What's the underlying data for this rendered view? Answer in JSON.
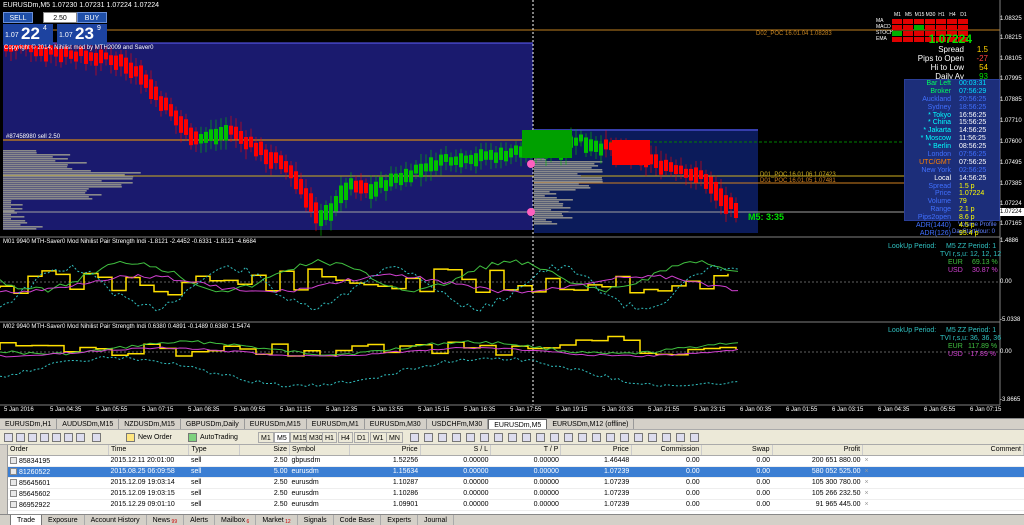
{
  "chart": {
    "title": "EURUSDm,M5  1.07230 1.07231 1.07224 1.07224",
    "one_click": {
      "sell_label": "SELL",
      "buy_label": "BUY",
      "lot": "2.50",
      "sell_prefix": "1.07",
      "sell_big": "22",
      "sell_sup": "4",
      "buy_prefix": "1.07",
      "buy_big": "23",
      "buy_sup": "9"
    },
    "copyright": "Copyright © 2014, Nihilist mod by MTH2009 and Saver0",
    "sell_label_left": "#87458980 sell 2.50",
    "poc_label": "D02_POC 16.01.04 1.08283",
    "poc_label2": "D01_POC 16.01.06 1.07423",
    "poc_label3": "D01_POC 16.01.05 1.07481",
    "timer": "M5: 3:35",
    "volume_profile": "Volume Profile",
    "day_start": "DayStartHour: 0",
    "price_axis": [
      "1.08325",
      "1.08215",
      "1.08105",
      "1.07995",
      "1.07885",
      "1.07710",
      "1.07600",
      "1.07495",
      "1.07385",
      "1.07224",
      "1.07165"
    ],
    "current_price_tag": "1.07224",
    "indicator1_title": "M01 9940 MTH-Saver0 Mod Nihilist Pair Strength Indi -1.8121 -2.4452 -0.6331 -1.8121 -4.6684",
    "indicator1_axis": [
      "1.4886",
      "0.00",
      "-5.0338"
    ],
    "indicator1_info": {
      "lookup": "LookUp Period:",
      "zz": "M5 ZZ Period: 1",
      "tvi": "TVI r,s,u: 12, 12, 12",
      "eur_label": "EUR",
      "eur_val": "69.13 %",
      "usd_label": "USD",
      "usd_val": "30.87 %"
    },
    "indicator2_title": "M02 9940 MTH-Saver0 Mod Nihilist Pair Strength Indi 0.6380 0.4891 -0.1489 0.6380 -1.5474",
    "indicator2_axis": [
      "0.00",
      "-3.8665"
    ],
    "indicator2_info": {
      "lookup": "LookUp Period:",
      "zz": "M5 ZZ Period: 1",
      "tvi": "TVI r,s,u: 36, 36, 36",
      "eur_label": "EUR",
      "eur_val": "117.89 %",
      "usd_label": "USD",
      "usd_val": "-17.89 %"
    },
    "time_axis": [
      "5 Jan 2016",
      "5 Jan 04:35",
      "5 Jan 05:55",
      "5 Jan 07:15",
      "5 Jan 08:35",
      "5 Jan 09:55",
      "5 Jan 11:15",
      "5 Jan 12:35",
      "5 Jan 13:55",
      "5 Jan 15:15",
      "5 Jan 16:35",
      "5 Jan 17:55",
      "5 Jan 19:15",
      "5 Jan 20:35",
      "5 Jan 21:55",
      "5 Jan 23:15",
      "6 Jan 00:35",
      "6 Jan 01:55",
      "6 Jan 03:15",
      "6 Jan 04:35",
      "6 Jan 05:55",
      "6 Jan 07:15"
    ]
  },
  "tf_matrix": {
    "headers": [
      "M1",
      "M5",
      "M15",
      "M30",
      "H1",
      "H4",
      "D1"
    ],
    "rows": [
      {
        "label": "MA",
        "colors": [
          "#e00000",
          "#e00000",
          "#e00000",
          "#e00000",
          "#e00000",
          "#e00000",
          "#e00000"
        ]
      },
      {
        "label": "MACD",
        "colors": [
          "#e00000",
          "#e00000",
          "#00b000",
          "#e00000",
          "#e00000",
          "#e00000",
          "#e00000"
        ]
      },
      {
        "label": "STOCH",
        "colors": [
          "#00b000",
          "#e00000",
          "#e00000",
          "#e00000",
          "#e00000",
          "#e00000",
          "#e00000"
        ]
      },
      {
        "label": "EMA",
        "colors": [
          "#e00000",
          "#e00000",
          "#e00000",
          "#e00000",
          "#e00000",
          "#e00000",
          "#e00000"
        ]
      }
    ]
  },
  "spread_panel": {
    "price": "1.07224",
    "rows": [
      {
        "key": "Spread",
        "value": "1.5",
        "color": "#ffd000"
      },
      {
        "key": "Pips to Open",
        "value": "-27",
        "color": "#ff4040"
      },
      {
        "key": "Hi to Low",
        "value": "54",
        "color": "#ffd000"
      },
      {
        "key": "Daily Av",
        "value": "93",
        "color": "#00e000"
      }
    ]
  },
  "session_panel": {
    "rows": [
      {
        "key": "Bar Left",
        "value": "00:03:31",
        "kc": "#00ff60",
        "vc": "#00e0ff"
      },
      {
        "key": "Broker",
        "value": "07:56:29",
        "kc": "#00ff60",
        "vc": "#00e0ff"
      },
      {
        "key": "Auckland",
        "value": "20:56:25",
        "kc": "#4070ff",
        "vc": "#4070ff"
      },
      {
        "key": "Sydney",
        "value": "18:56:25",
        "kc": "#4070ff",
        "vc": "#4070ff"
      },
      {
        "key": "* Tokyo",
        "value": "16:56:25",
        "kc": "#00ffff",
        "vc": "#ffffff"
      },
      {
        "key": "* China",
        "value": "15:56:25",
        "kc": "#00ffff",
        "vc": "#ffffff"
      },
      {
        "key": "* Jakarta",
        "value": "14:56:25",
        "kc": "#00ffff",
        "vc": "#ffffff"
      },
      {
        "key": "* Moscow",
        "value": "11:56:25",
        "kc": "#00ffff",
        "vc": "#ffffff"
      },
      {
        "key": "* Berlin",
        "value": "08:56:25",
        "kc": "#00ffff",
        "vc": "#ffffff"
      },
      {
        "key": "London",
        "value": "07:56:25",
        "kc": "#4070ff",
        "vc": "#4070ff"
      },
      {
        "key": "UTC/GMT",
        "value": "07:56:25",
        "kc": "#ff8000",
        "vc": "#ffffff"
      },
      {
        "key": "New York",
        "value": "02:56:25",
        "kc": "#4070ff",
        "vc": "#4070ff"
      },
      {
        "key": "Local",
        "value": "14:56:25",
        "kc": "#ffffff",
        "vc": "#ffffff"
      },
      {
        "key": "Spread",
        "value": "1.5 p",
        "kc": "#4070ff",
        "vc": "#ffff00"
      },
      {
        "key": "Price",
        "value": "1.07224",
        "kc": "#4070ff",
        "vc": "#ffff00"
      },
      {
        "key": "Volume",
        "value": "79",
        "kc": "#4070ff",
        "vc": "#ffff00"
      },
      {
        "key": "Range",
        "value": "2.1 p",
        "kc": "#4070ff",
        "vc": "#ffff00"
      },
      {
        "key": "Pips2open",
        "value": "8.6 p",
        "kc": "#4070ff",
        "vc": "#ffff00"
      },
      {
        "key": "ADR(1440)",
        "value": "4.5 p",
        "kc": "#4070ff",
        "vc": "#ffff00"
      },
      {
        "key": "ADR(126)",
        "value": "95.4 p",
        "kc": "#4070ff",
        "vc": "#ffff00"
      }
    ]
  },
  "chart_tabs": [
    "EURUSDm,H1",
    "AUDUSDm,M15",
    "NZDUSDm,M15",
    "GBPUSDm,Daily",
    "EURUSDm,M15",
    "EURUSDm,M1",
    "EURUSDm,M30",
    "USDCHFm,M30",
    "EURUSDm,M5",
    "EURUSDm,M12 (offline)"
  ],
  "active_chart_tab": 8,
  "toolbar": {
    "new_order": "New Order",
    "autotrading": "AutoTrading",
    "timeframes": [
      "M1",
      "M5",
      "M15",
      "M30",
      "H1",
      "H4",
      "D1",
      "W1",
      "MN"
    ]
  },
  "terminal": {
    "columns": [
      "Order",
      "Time",
      "Type",
      "Size",
      "Symbol",
      "Price",
      "S / L",
      "T / P",
      "Price",
      "Commission",
      "Swap",
      "Profit",
      "Comment"
    ],
    "rows": [
      {
        "order": "85834195",
        "time": "2015.12.11 20:01:00",
        "type": "sell",
        "size": "2.50",
        "symbol": "gbpusdm",
        "price": "1.52256",
        "sl": "0.00000",
        "tp": "0.00000",
        "cur": "1.46448",
        "commission": "0.00",
        "swap": "0.00",
        "profit": "200 651 880.00"
      },
      {
        "order": "81260522",
        "time": "2015.08.25 06:09:58",
        "type": "sell",
        "size": "5.00",
        "symbol": "eurusdm",
        "price": "1.15634",
        "sl": "0.00000",
        "tp": "0.00000",
        "cur": "1.07239",
        "commission": "0.00",
        "swap": "0.00",
        "profit": "580 052 525.00"
      },
      {
        "order": "85645601",
        "time": "2015.12.09 19:03:14",
        "type": "sell",
        "size": "2.50",
        "symbol": "eurusdm",
        "price": "1.10287",
        "sl": "0.00000",
        "tp": "0.00000",
        "cur": "1.07239",
        "commission": "0.00",
        "swap": "0.00",
        "profit": "105 300 780.00"
      },
      {
        "order": "85645602",
        "time": "2015.12.09 19:03:15",
        "type": "sell",
        "size": "2.50",
        "symbol": "eurusdm",
        "price": "1.10286",
        "sl": "0.00000",
        "tp": "0.00000",
        "cur": "1.07239",
        "commission": "0.00",
        "swap": "0.00",
        "profit": "105 266 232.50"
      },
      {
        "order": "86952922",
        "time": "2015.12.29 09:01:10",
        "type": "sell",
        "size": "2.50",
        "symbol": "eurusdm",
        "price": "1.09901",
        "sl": "0.00000",
        "tp": "0.00000",
        "cur": "1.07239",
        "commission": "0.00",
        "swap": "0.00",
        "profit": "91 965 445.00"
      }
    ],
    "selected_row": 1
  },
  "bottom_tabs": [
    {
      "label": "Trade",
      "badge": ""
    },
    {
      "label": "Exposure",
      "badge": ""
    },
    {
      "label": "Account History",
      "badge": ""
    },
    {
      "label": "News",
      "badge": "99"
    },
    {
      "label": "Alerts",
      "badge": ""
    },
    {
      "label": "Mailbox",
      "badge": "6"
    },
    {
      "label": "Market",
      "badge": "12"
    },
    {
      "label": "Signals",
      "badge": ""
    },
    {
      "label": "Code Base",
      "badge": ""
    },
    {
      "label": "Experts",
      "badge": ""
    },
    {
      "label": "Journal",
      "badge": ""
    }
  ],
  "active_bottom_tab": 0,
  "colors": {
    "bull_candle": "#00c000",
    "bear_candle": "#ff0000",
    "session_box": "#1a1a6e",
    "indicator_yellow": "#ffe000",
    "grid": "#404040"
  }
}
